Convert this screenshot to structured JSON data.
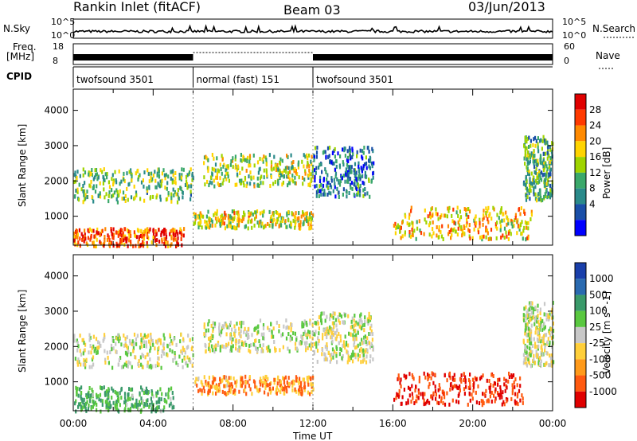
{
  "header": {
    "station": "Rankin Inlet (fitACF)",
    "beam": "Beam 03",
    "date": "03/Jun/2013"
  },
  "strip_labels": {
    "nsky": "N.Sky",
    "nsky_ticks": [
      "10^5",
      "10^0"
    ],
    "nsearch": "N.Search",
    "nsearch_ticks": [
      "10^5",
      "10^0"
    ],
    "freq": "Freq.",
    "freq_unit": "[MHz]",
    "freq_ticks": [
      "18",
      "8"
    ],
    "nave": "Nave",
    "nave_ticks": [
      "60",
      "0"
    ],
    "cpid": "CPID"
  },
  "cpid_segments": [
    {
      "label": "twofsound 3501",
      "start_h": 0,
      "end_h": 6
    },
    {
      "label": "normal (fast) 151",
      "start_h": 6,
      "end_h": 12
    },
    {
      "label": "twofsound 3501",
      "start_h": 12,
      "end_h": 24
    }
  ],
  "panels": {
    "y_label": "Slant Range [km]",
    "y_ticks": [
      1000,
      2000,
      3000,
      4000
    ],
    "y_range": [
      180,
      4600
    ],
    "x_label": "Time UT",
    "x_ticks": [
      "00:00",
      "04:00",
      "08:00",
      "12:00",
      "16:00",
      "20:00",
      "00:00"
    ],
    "x_range_h": [
      0,
      24
    ]
  },
  "power_scale": {
    "title": "Power [dB]",
    "ticks": [
      "28",
      "24",
      "20",
      "16",
      "12",
      "8",
      "4"
    ],
    "colors": [
      "#e00000",
      "#ff3a00",
      "#ff8a00",
      "#ffd400",
      "#9fd400",
      "#3aa86a",
      "#2a8a8a",
      "#1a4fa8",
      "#0000ff"
    ]
  },
  "velocity_scale": {
    "title": "Velocity [m s^-1]",
    "ticks": [
      "1000",
      "500",
      "100",
      "25",
      "-25",
      "-100",
      "-500",
      "-1000"
    ],
    "colors": [
      "#1a3faa",
      "#2a6ab0",
      "#3a9a6a",
      "#5ac840",
      "#c8c8c8",
      "#ffcf3a",
      "#ff9a1a",
      "#ff5a10",
      "#e00000"
    ]
  },
  "chart_data": {
    "type": "heatmap",
    "title": "Rankin Inlet (fitACF)",
    "subtitle": "Beam 03",
    "date": "03/Jun/2013",
    "xlabel": "Time UT",
    "ylabel": "Slant Range [km]",
    "xlim_hours": [
      0,
      24
    ],
    "ylim_km": [
      180,
      4600
    ],
    "power_db_regions": [
      {
        "t0": 0.0,
        "t1": 5.5,
        "r0": 200,
        "r1": 700,
        "power": 26
      },
      {
        "t0": 0.0,
        "t1": 6.0,
        "r0": 1450,
        "r1": 2400,
        "power": 14
      },
      {
        "t0": 6.5,
        "t1": 12.0,
        "r0": 1900,
        "r1": 2800,
        "power": 16
      },
      {
        "t0": 6.0,
        "t1": 12.0,
        "r0": 700,
        "r1": 1200,
        "power": 18
      },
      {
        "t0": 12.0,
        "t1": 15.0,
        "r0": 1600,
        "r1": 3000,
        "power": 8
      },
      {
        "t0": 16.0,
        "t1": 23.0,
        "r0": 400,
        "r1": 1300,
        "power": 20
      },
      {
        "t0": 22.5,
        "t1": 24.0,
        "r0": 1500,
        "r1": 3300,
        "power": 12
      }
    ],
    "velocity_regions": [
      {
        "t0": 0.0,
        "t1": 5.0,
        "r0": 200,
        "r1": 900,
        "velocity": 100
      },
      {
        "t0": 0.0,
        "t1": 6.0,
        "r0": 1450,
        "r1": 2400,
        "velocity": 0
      },
      {
        "t0": 6.5,
        "t1": 12.0,
        "r0": 1900,
        "r1": 2800,
        "velocity": 0
      },
      {
        "t0": 6.0,
        "t1": 12.0,
        "r0": 700,
        "r1": 1200,
        "velocity": -100
      },
      {
        "t0": 12.0,
        "t1": 15.0,
        "r0": 1600,
        "r1": 3000,
        "velocity": 0
      },
      {
        "t0": 16.0,
        "t1": 22.5,
        "r0": 400,
        "r1": 1300,
        "velocity": -500
      },
      {
        "t0": 22.5,
        "t1": 24.0,
        "r0": 1500,
        "r1": 3300,
        "velocity": 0
      }
    ]
  }
}
